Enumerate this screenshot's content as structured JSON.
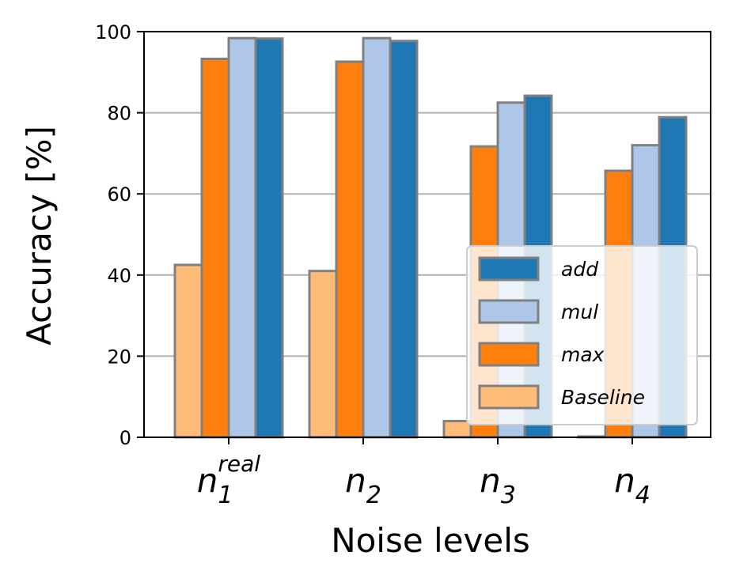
{
  "chart_data": {
    "type": "bar",
    "title": "",
    "xlabel": "Noise levels",
    "ylabel": "Accuracy [%]",
    "ylim": [
      0,
      100
    ],
    "yticks": [
      0,
      20,
      40,
      60,
      80,
      100
    ],
    "grid": "y",
    "legend_position": "lower-right",
    "categories": [
      {
        "base": "n",
        "sub": "1",
        "sup": "real"
      },
      {
        "base": "n",
        "sub": "2",
        "sup": ""
      },
      {
        "base": "n",
        "sub": "3",
        "sup": ""
      },
      {
        "base": "n",
        "sub": "4",
        "sup": ""
      }
    ],
    "series": [
      {
        "name": "Baseline",
        "color": "#ffbb78",
        "values": [
          42.5,
          41.0,
          4.0,
          0.2
        ]
      },
      {
        "name": "max",
        "color": "#ff7f0e",
        "values": [
          93.3,
          92.6,
          71.7,
          65.7
        ]
      },
      {
        "name": "mul",
        "color": "#aec7e8",
        "values": [
          98.4,
          98.4,
          82.5,
          72.0
        ]
      },
      {
        "name": "add",
        "color": "#1f77b4",
        "values": [
          98.3,
          97.7,
          84.2,
          78.9
        ]
      }
    ],
    "legend_order": [
      "add",
      "mul",
      "max",
      "Baseline"
    ],
    "bar_edge_color": "#808080"
  }
}
